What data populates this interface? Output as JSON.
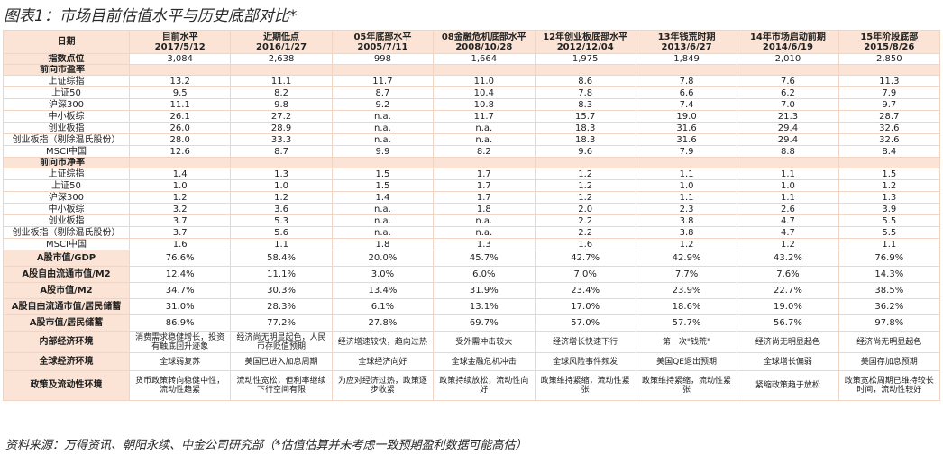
{
  "title": "图表1：市场目前估值水平与历史底部对比*",
  "table": {
    "header": {
      "label": "日期",
      "columns": [
        {
          "name": "目前水平",
          "date": "2017/5/12"
        },
        {
          "name": "近期低点",
          "date": "2016/1/27"
        },
        {
          "name": "05年底部水平",
          "date": "2005/7/11"
        },
        {
          "name": "08金融危机底部水平",
          "date": "2008/10/28"
        },
        {
          "name": "12年创业板底部水平",
          "date": "2012/12/04"
        },
        {
          "name": "13年钱荒时期",
          "date": "2013/6/27"
        },
        {
          "name": "14年市场启动前期",
          "date": "2014/6/19"
        },
        {
          "name": "15年阶段底部",
          "date": "2015/8/26"
        }
      ]
    },
    "index_row": {
      "label": "指数点位",
      "values": [
        "3,084",
        "2,638",
        "998",
        "1,664",
        "1,975",
        "1,849",
        "2,010",
        "2,850"
      ]
    },
    "sections": [
      {
        "title": "前向市盈率",
        "rows": [
          {
            "label": "上证综指",
            "values": [
              "13.2",
              "11.1",
              "11.7",
              "11.0",
              "8.6",
              "7.8",
              "7.6",
              "11.3"
            ]
          },
          {
            "label": "上证50",
            "values": [
              "9.5",
              "8.2",
              "8.7",
              "10.4",
              "7.8",
              "6.6",
              "6.2",
              "7.9"
            ]
          },
          {
            "label": "沪深300",
            "values": [
              "11.1",
              "9.8",
              "9.2",
              "10.8",
              "8.3",
              "7.4",
              "7.0",
              "9.7"
            ]
          },
          {
            "label": "中小板综",
            "values": [
              "26.1",
              "27.2",
              "n.a.",
              "11.7",
              "15.7",
              "19.0",
              "21.3",
              "28.7"
            ]
          },
          {
            "label": "创业板指",
            "values": [
              "26.0",
              "28.9",
              "n.a.",
              "n.a.",
              "18.3",
              "31.6",
              "29.4",
              "32.6"
            ]
          },
          {
            "label": "创业板指（剔除温氏股份）",
            "values": [
              "28.0",
              "33.3",
              "n.a.",
              "n.a.",
              "18.3",
              "31.6",
              "29.4",
              "32.6"
            ]
          },
          {
            "label": "MSCI中国",
            "values": [
              "12.6",
              "8.7",
              "9.9",
              "8.2",
              "9.6",
              "7.9",
              "8.8",
              "8.4"
            ]
          }
        ]
      },
      {
        "title": "前向市净率",
        "rows": [
          {
            "label": "上证综指",
            "values": [
              "1.4",
              "1.3",
              "1.5",
              "1.7",
              "1.2",
              "1.1",
              "1.1",
              "1.5"
            ]
          },
          {
            "label": "上证50",
            "values": [
              "1.0",
              "1.0",
              "1.5",
              "1.7",
              "1.2",
              "1.0",
              "1.0",
              "1.2"
            ]
          },
          {
            "label": "沪深300",
            "values": [
              "1.2",
              "1.2",
              "1.4",
              "1.7",
              "1.2",
              "1.1",
              "1.1",
              "1.3"
            ]
          },
          {
            "label": "中小板综",
            "values": [
              "3.2",
              "3.6",
              "n.a.",
              "1.8",
              "2.0",
              "2.3",
              "2.6",
              "3.9"
            ]
          },
          {
            "label": "创业板指",
            "values": [
              "3.7",
              "5.3",
              "n.a.",
              "n.a.",
              "2.2",
              "3.8",
              "4.7",
              "5.5"
            ]
          },
          {
            "label": "创业板指（剔除温氏股份）",
            "values": [
              "3.7",
              "5.6",
              "n.a.",
              "n.a.",
              "2.2",
              "3.8",
              "4.7",
              "5.5"
            ]
          },
          {
            "label": "MSCI中国",
            "values": [
              "1.6",
              "1.1",
              "1.8",
              "1.3",
              "1.6",
              "1.2",
              "1.2",
              "1.1"
            ]
          }
        ]
      }
    ],
    "ratio_rows": [
      {
        "label": "A股市值/GDP",
        "values": [
          "76.6%",
          "58.4%",
          "20.0%",
          "45.7%",
          "42.7%",
          "42.9%",
          "43.2%",
          "76.9%"
        ]
      },
      {
        "label": "A股自由流通市值/M2",
        "values": [
          "12.4%",
          "11.1%",
          "3.0%",
          "6.0%",
          "7.0%",
          "7.7%",
          "7.6%",
          "14.3%"
        ]
      },
      {
        "label": "A股市值/M2",
        "values": [
          "34.7%",
          "30.3%",
          "13.4%",
          "31.9%",
          "23.4%",
          "23.9%",
          "22.7%",
          "38.5%"
        ]
      },
      {
        "label": "A股自由流通市值/居民储蓄",
        "values": [
          "31.0%",
          "28.3%",
          "6.1%",
          "13.1%",
          "17.0%",
          "18.6%",
          "19.0%",
          "36.2%"
        ]
      },
      {
        "label": "A股市值/居民储蓄",
        "values": [
          "86.9%",
          "77.2%",
          "27.8%",
          "69.7%",
          "57.0%",
          "57.7%",
          "56.7%",
          "97.8%"
        ]
      }
    ],
    "environment_rows": [
      {
        "label": "内部经济环境",
        "values": [
          "消费需求稳健增长，投资有触底回升迹象",
          "经济尚无明显起色，人民币存贬值预期",
          "经济增速较快，趋向过热",
          "受外需冲击较大",
          "经济增长快速下行",
          "第一次\"钱荒\"",
          "经济尚无明显起色",
          "经济尚无明显起色"
        ]
      },
      {
        "label": "全球经济环境",
        "values": [
          "全球弱复苏",
          "美国已进入加息周期",
          "全球经济向好",
          "全球金融危机冲击",
          "全球风险事件频发",
          "美国QE退出预期",
          "全球增长偏弱",
          "美国存加息预期"
        ]
      },
      {
        "label": "政策及流动性环境",
        "values": [
          "货币政策转向稳健中性，流动性趋紧",
          "流动性宽松，但利率继续下行空间有限",
          "为应对经济过热，政策逐步收紧",
          "政策持续放松，流动性向好",
          "政策维持紧缩，流动性紧张",
          "政策维持紧缩，流动性紧张",
          "紧缩政策趋于放松",
          "政策宽松周期已维持较长时间，流动性较好"
        ]
      }
    ]
  },
  "source": "资料来源：万得资讯、朝阳永续、中金公司研究部（*估值估算并未考虑一致预期盈利数据可能高估）"
}
